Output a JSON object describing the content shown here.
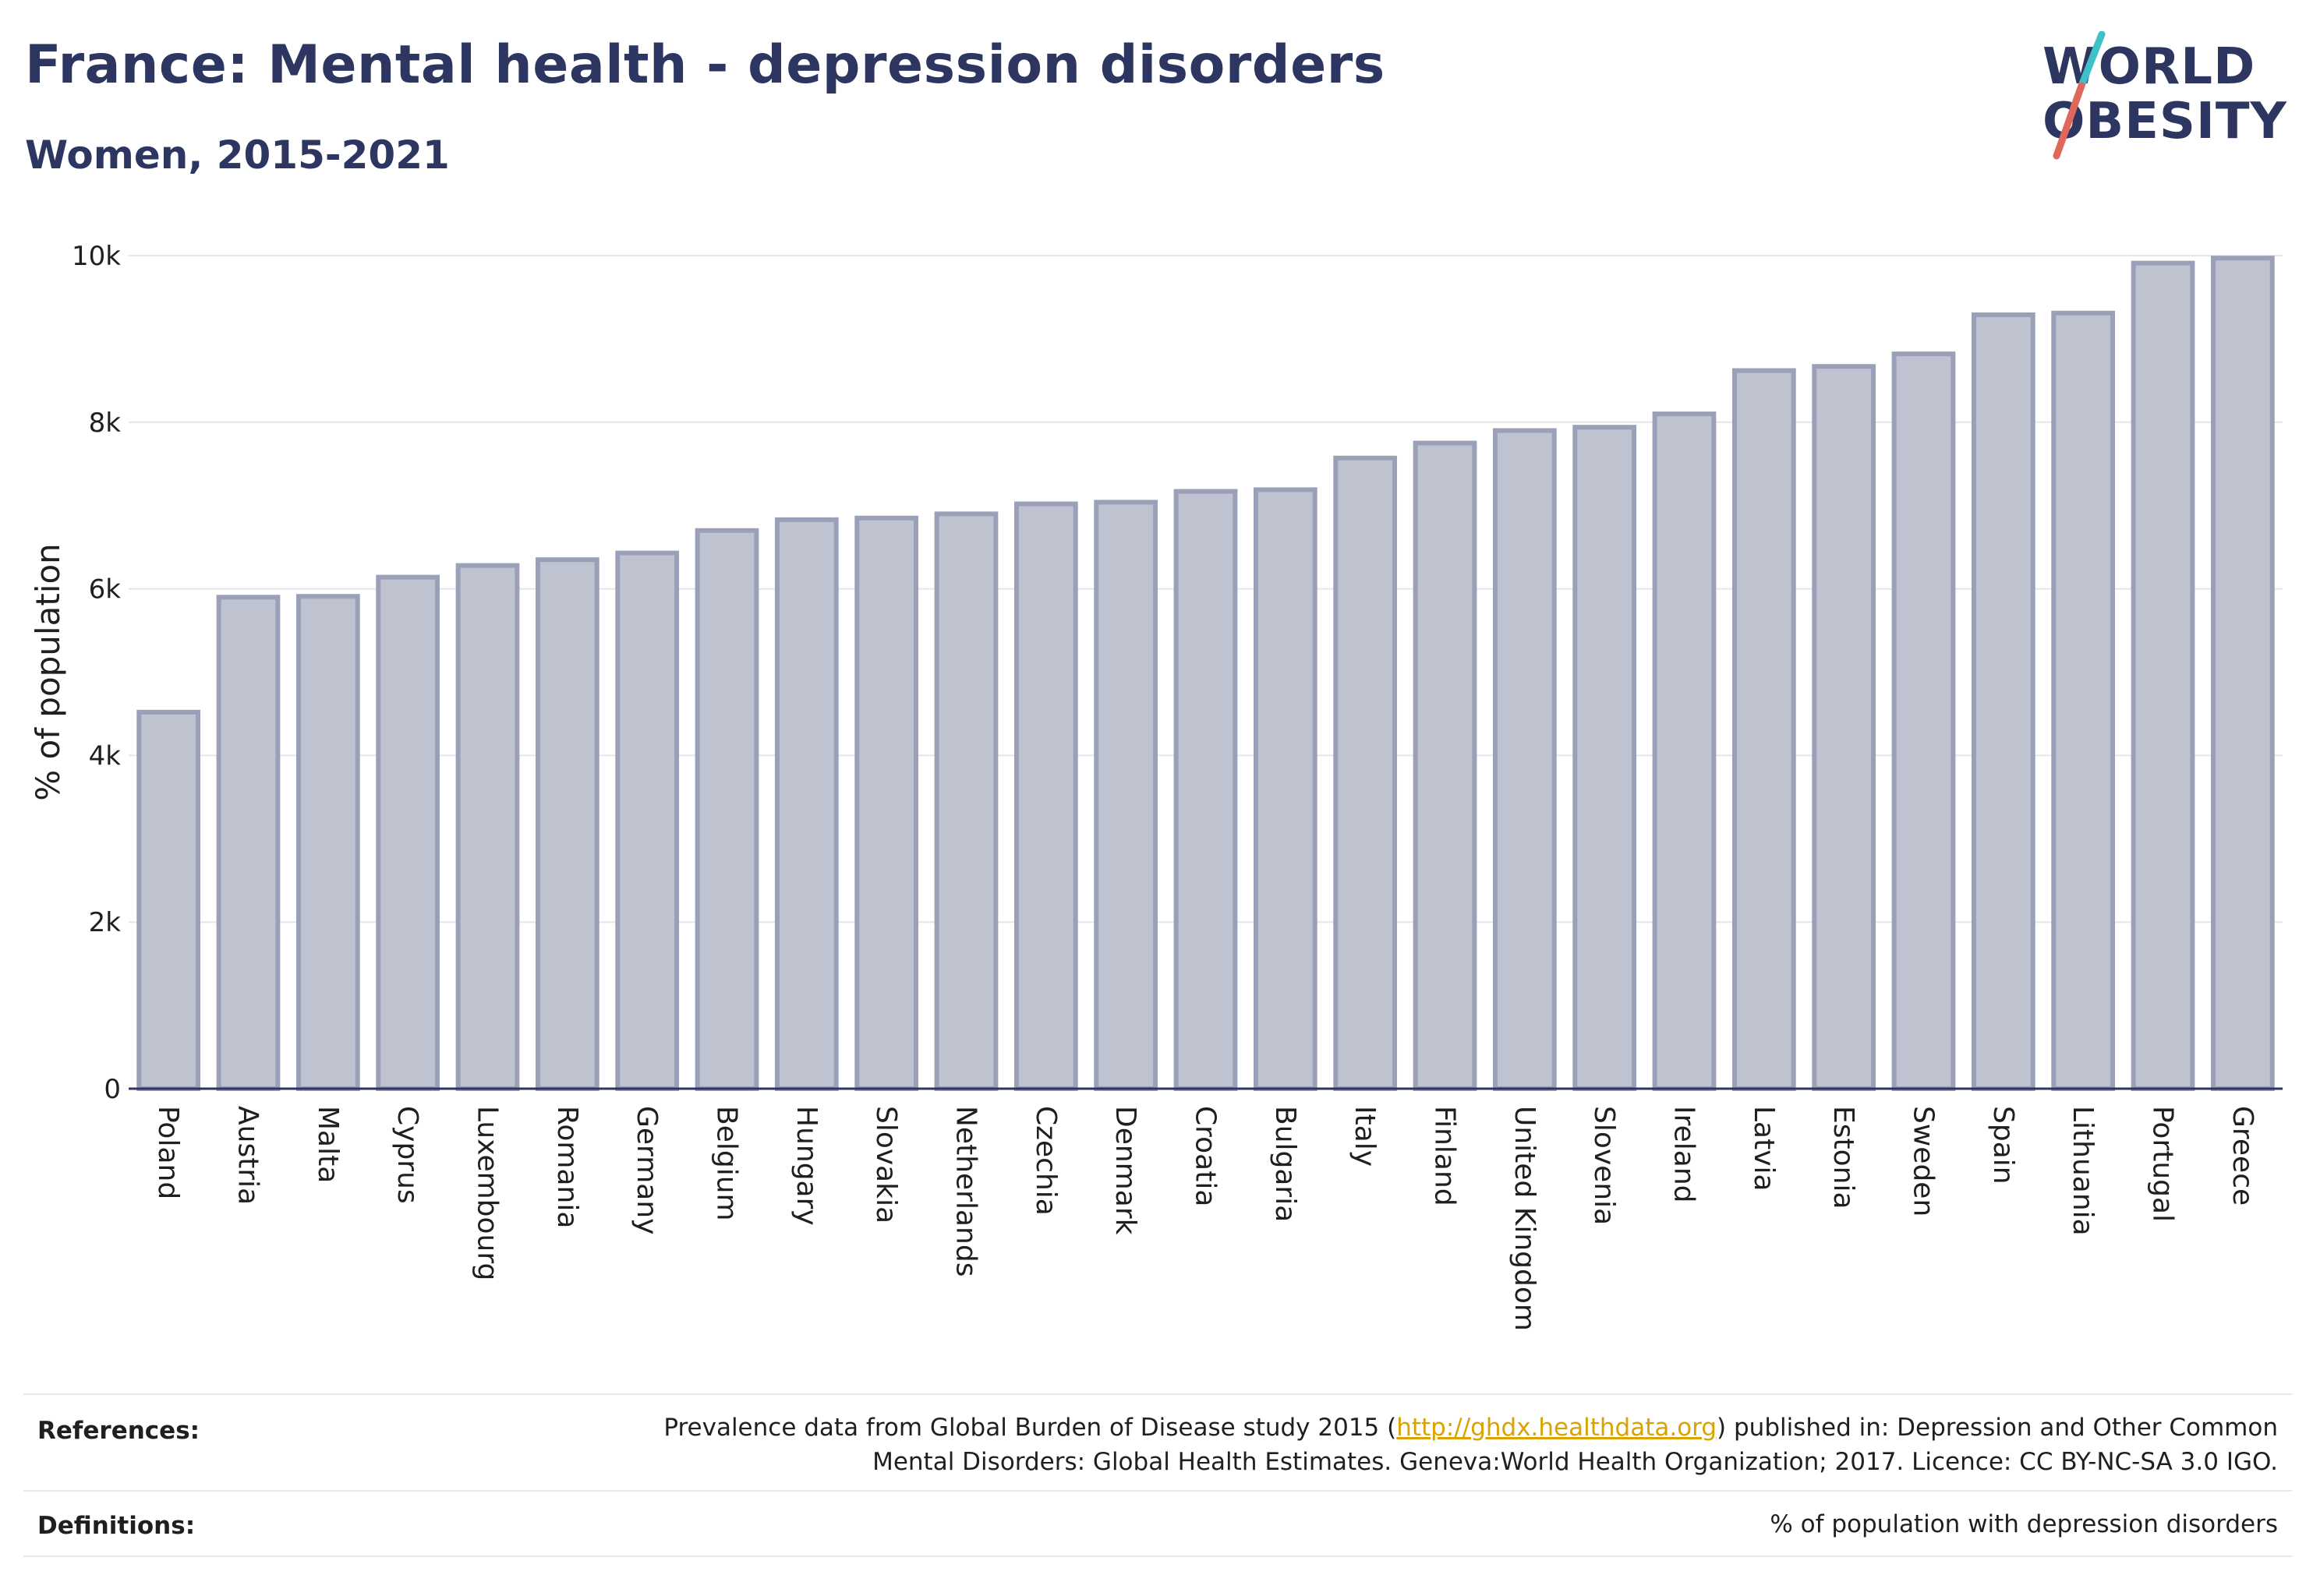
{
  "header": {
    "title": "France: Mental health - depression disorders",
    "subtitle": "Women, 2015-2021"
  },
  "logo": {
    "line1": "WORLD",
    "line2": "OBESITY",
    "accent_colors": [
      "#3ec1c9",
      "#e0685a"
    ]
  },
  "chart_data": {
    "type": "bar",
    "ylabel": "% of population",
    "ylim": [
      0,
      10000
    ],
    "yticks": [
      "0",
      "2k",
      "4k",
      "6k",
      "8k",
      "10k"
    ],
    "ytick_values": [
      0,
      2000,
      4000,
      6000,
      8000,
      10000
    ],
    "grid": true,
    "bar_color": "#bfc3d0",
    "bar_border_color": "#9aa0b8",
    "categories": [
      "Poland",
      "Austria",
      "Malta",
      "Cyprus",
      "Luxembourg",
      "Romania",
      "Germany",
      "Belgium",
      "Hungary",
      "Slovakia",
      "Netherlands",
      "Czechia",
      "Denmark",
      "Croatia",
      "Bulgaria",
      "Italy",
      "Finland",
      "United Kingdom",
      "Slovenia",
      "Ireland",
      "Latvia",
      "Estonia",
      "Sweden",
      "Spain",
      "Lithuania",
      "Portugal",
      "Greece"
    ],
    "values": [
      4520,
      5900,
      5910,
      6140,
      6280,
      6350,
      6430,
      6700,
      6830,
      6850,
      6900,
      7020,
      7040,
      7170,
      7190,
      7570,
      7750,
      7900,
      7940,
      8100,
      8620,
      8670,
      8820,
      9290,
      9310,
      9910,
      9970
    ]
  },
  "footer": {
    "references_label": "References:",
    "references_line1_pre": "Prevalence data from Global Burden of Disease study 2015 (",
    "references_link": "http://ghdx.healthdata.org",
    "references_line1_post": ") published in: Depression and Other Common",
    "references_line2": "Mental Disorders: Global Health Estimates. Geneva:World Health Organization; 2017. Licence: CC BY-NC-SA 3.0 IGO.",
    "definitions_label": "Definitions:",
    "definitions_text": "% of population with depression disorders"
  }
}
